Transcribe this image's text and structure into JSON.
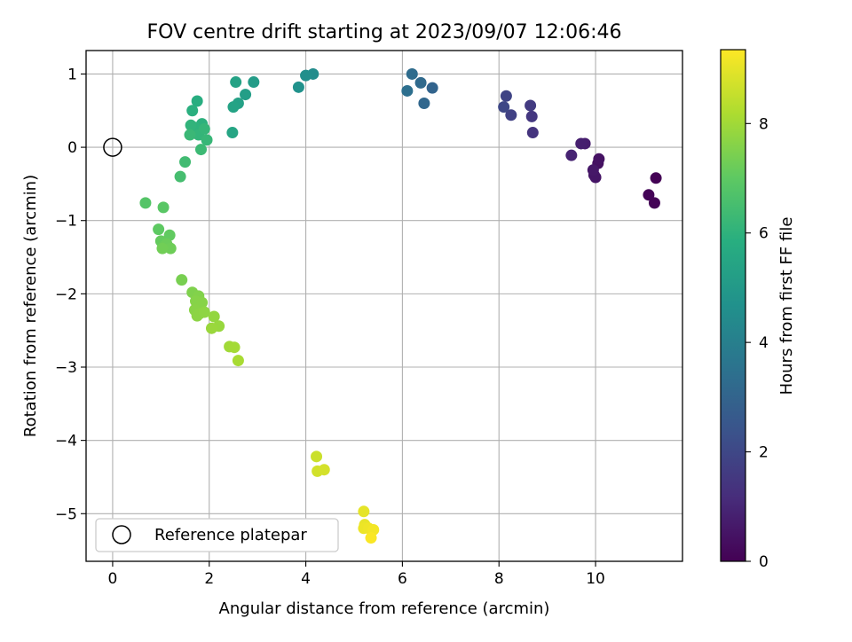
{
  "chart_data": {
    "type": "scatter",
    "title": "FOV centre drift starting at 2023/09/07 12:06:46",
    "xlabel": "Angular distance from reference (arcmin)",
    "ylabel": "Rotation from reference (arcmin)",
    "xlim": [
      -0.55,
      11.8
    ],
    "ylim": [
      -5.65,
      1.32
    ],
    "xticks": [
      0,
      2,
      4,
      6,
      8,
      10
    ],
    "yticks": [
      1,
      0,
      -1,
      -2,
      -3,
      -4,
      -5
    ],
    "grid": true,
    "legend": {
      "position": "lower-left",
      "entries": [
        "Reference platepar"
      ]
    },
    "reference_point": {
      "x": 0,
      "y": 0
    },
    "colorbar": {
      "label": "Hours from first FF file",
      "range": [
        0,
        9.35
      ],
      "ticks": [
        0,
        2,
        4,
        6,
        8
      ],
      "colormap": "viridis"
    },
    "points": [
      [
        11.25,
        -0.42,
        0.02
      ],
      [
        11.22,
        -0.76,
        0.05
      ],
      [
        11.1,
        -0.65,
        0.08
      ],
      [
        10.05,
        -0.22,
        0.4
      ],
      [
        10.07,
        -0.16,
        0.45
      ],
      [
        10.0,
        -0.41,
        0.5
      ],
      [
        9.97,
        -0.38,
        0.55
      ],
      [
        9.95,
        -0.31,
        0.6
      ],
      [
        9.78,
        0.05,
        0.75
      ],
      [
        9.7,
        0.05,
        0.8
      ],
      [
        9.5,
        -0.11,
        0.9
      ],
      [
        8.7,
        0.2,
        1.4
      ],
      [
        8.68,
        0.42,
        1.5
      ],
      [
        8.65,
        0.57,
        1.6
      ],
      [
        8.25,
        0.44,
        1.8
      ],
      [
        8.15,
        0.7,
        1.9
      ],
      [
        8.1,
        0.55,
        2.0
      ],
      [
        6.62,
        0.81,
        3.0
      ],
      [
        6.45,
        0.6,
        3.1
      ],
      [
        6.38,
        0.88,
        3.2
      ],
      [
        6.2,
        1.0,
        3.3
      ],
      [
        6.1,
        0.77,
        3.4
      ],
      [
        4.15,
        1.0,
        4.5
      ],
      [
        4.0,
        0.98,
        4.6
      ],
      [
        3.85,
        0.82,
        4.7
      ],
      [
        2.92,
        0.89,
        5.1
      ],
      [
        2.75,
        0.72,
        5.2
      ],
      [
        2.6,
        0.6,
        5.3
      ],
      [
        2.55,
        0.89,
        5.35
      ],
      [
        2.5,
        0.55,
        5.4
      ],
      [
        2.48,
        0.2,
        5.5
      ],
      [
        1.75,
        0.63,
        5.8
      ],
      [
        1.65,
        0.5,
        5.9
      ],
      [
        1.85,
        0.32,
        5.95
      ],
      [
        1.7,
        0.27,
        6.0
      ],
      [
        1.62,
        0.3,
        6.05
      ],
      [
        1.78,
        0.17,
        6.1
      ],
      [
        1.9,
        0.25,
        6.15
      ],
      [
        1.95,
        0.1,
        6.2
      ],
      [
        1.6,
        0.17,
        6.25
      ],
      [
        1.83,
        -0.03,
        6.3
      ],
      [
        1.5,
        -0.2,
        6.4
      ],
      [
        1.4,
        -0.4,
        6.5
      ],
      [
        0.68,
        -0.76,
        6.8
      ],
      [
        1.05,
        -0.82,
        6.9
      ],
      [
        0.95,
        -1.12,
        7.0
      ],
      [
        1.18,
        -1.2,
        7.05
      ],
      [
        1.0,
        -1.28,
        7.1
      ],
      [
        1.05,
        -1.35,
        7.15
      ],
      [
        1.12,
        -1.32,
        7.2
      ],
      [
        1.2,
        -1.38,
        7.25
      ],
      [
        1.03,
        -1.38,
        7.3
      ],
      [
        1.43,
        -1.81,
        7.4
      ],
      [
        1.65,
        -1.98,
        7.5
      ],
      [
        1.78,
        -2.03,
        7.55
      ],
      [
        1.72,
        -2.1,
        7.6
      ],
      [
        1.85,
        -2.12,
        7.62
      ],
      [
        1.7,
        -2.22,
        7.65
      ],
      [
        1.8,
        -2.27,
        7.68
      ],
      [
        1.75,
        -2.3,
        7.7
      ],
      [
        1.9,
        -2.25,
        7.72
      ],
      [
        2.1,
        -2.31,
        7.8
      ],
      [
        2.2,
        -2.44,
        7.85
      ],
      [
        2.05,
        -2.47,
        7.9
      ],
      [
        2.42,
        -2.72,
        8.0
      ],
      [
        2.52,
        -2.73,
        8.05
      ],
      [
        2.6,
        -2.91,
        8.1
      ],
      [
        4.22,
        -4.22,
        8.6
      ],
      [
        4.24,
        -4.42,
        8.7
      ],
      [
        4.38,
        -4.4,
        8.75
      ],
      [
        5.2,
        -4.97,
        9.0
      ],
      [
        5.22,
        -5.15,
        9.05
      ],
      [
        5.2,
        -5.2,
        9.1
      ],
      [
        5.3,
        -5.2,
        9.15
      ],
      [
        5.4,
        -5.22,
        9.2
      ],
      [
        5.35,
        -5.33,
        9.3
      ]
    ]
  }
}
